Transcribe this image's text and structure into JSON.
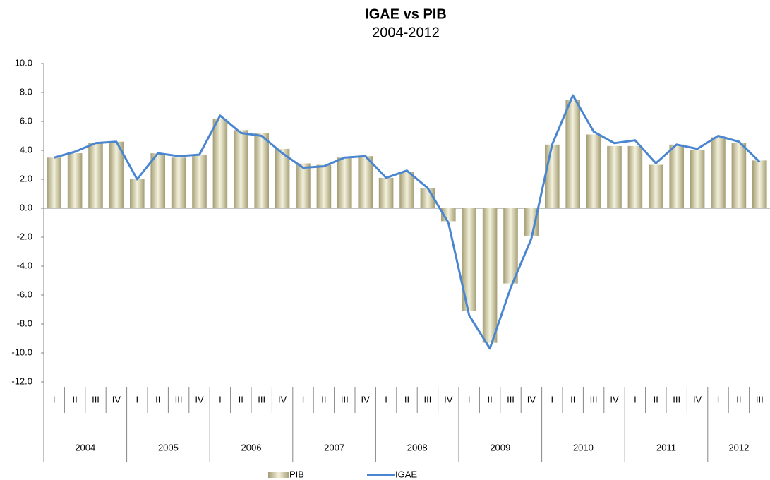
{
  "chart_data": {
    "type": "bar-line",
    "title": "IGAE vs PIB",
    "subtitle": "2004-2012",
    "categories": [
      "I",
      "II",
      "III",
      "IV",
      "I",
      "II",
      "III",
      "IV",
      "I",
      "II",
      "III",
      "IV",
      "I",
      "II",
      "III",
      "IV",
      "I",
      "II",
      "III",
      "IV",
      "I",
      "II",
      "III",
      "IV",
      "I",
      "II",
      "III",
      "IV",
      "I",
      "II",
      "III",
      "IV",
      "I",
      "II",
      "III"
    ],
    "years": [
      "2004",
      "2005",
      "2006",
      "2007",
      "2008",
      "2009",
      "2010",
      "2011",
      "2012"
    ],
    "series": [
      {
        "name": "PIB",
        "type": "bar",
        "color": "#a39d74",
        "values": [
          3.5,
          3.8,
          4.5,
          4.6,
          2.0,
          3.8,
          3.5,
          3.7,
          6.2,
          5.4,
          5.2,
          4.1,
          3.1,
          3.0,
          3.5,
          3.6,
          2.1,
          2.5,
          1.4,
          -0.9,
          -7.1,
          -9.3,
          -5.2,
          -1.9,
          4.4,
          7.5,
          5.1,
          4.3,
          4.3,
          3.0,
          4.4,
          4.0,
          4.9,
          4.5,
          3.3
        ]
      },
      {
        "name": "IGAE",
        "type": "line",
        "color": "#4a86d0",
        "values": [
          3.5,
          3.9,
          4.5,
          4.6,
          2.0,
          3.8,
          3.6,
          3.7,
          6.4,
          5.2,
          5.0,
          3.8,
          2.8,
          2.9,
          3.5,
          3.6,
          2.1,
          2.6,
          1.4,
          -1.0,
          -7.4,
          -9.7,
          -5.5,
          -2.1,
          4.4,
          7.8,
          5.3,
          4.5,
          4.7,
          3.1,
          4.4,
          4.1,
          5.0,
          4.6,
          3.2
        ]
      }
    ],
    "ylim": [
      -12,
      10
    ],
    "yticks": [
      {
        "value": -12,
        "label": "-12.0"
      },
      {
        "value": -10,
        "label": "-10.0"
      },
      {
        "value": -8,
        "label": "-8.0"
      },
      {
        "value": -6,
        "label": "-6.0"
      },
      {
        "value": -4,
        "label": "-4.0"
      },
      {
        "value": -2,
        "label": "-2.0"
      },
      {
        "value": 0,
        "label": "0.0"
      },
      {
        "value": 2,
        "label": "2.0"
      },
      {
        "value": 4,
        "label": "4.0"
      },
      {
        "value": 6,
        "label": "6.0"
      },
      {
        "value": 8,
        "label": "8.0"
      },
      {
        "value": 10,
        "label": "10.0"
      }
    ],
    "legend": "bottom"
  }
}
